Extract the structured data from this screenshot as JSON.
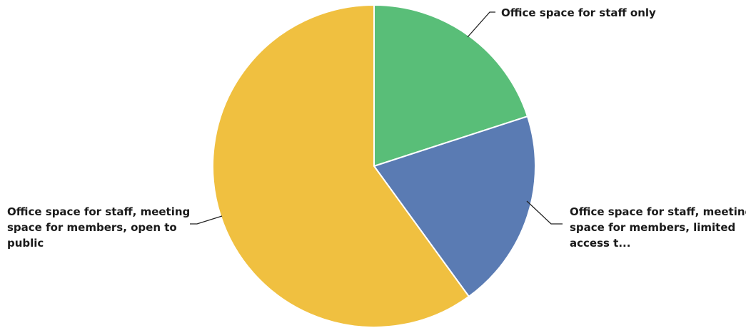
{
  "chart_data": {
    "type": "pie",
    "title": "",
    "slices": [
      {
        "label_lines": [
          "Office space for staff only"
        ],
        "value": 20,
        "color": "#59BE78"
      },
      {
        "label_lines": [
          "Office space for staff, meeting",
          "space for members, limited",
          "access t..."
        ],
        "value": 20,
        "color": "#5A7BB3"
      },
      {
        "label_lines": [
          "Office space for staff, meeting",
          "space for members, open to",
          "public"
        ],
        "value": 60,
        "color": "#F0C040"
      }
    ],
    "start_angle_deg": 0,
    "direction": "clockwise",
    "legend": "none"
  }
}
